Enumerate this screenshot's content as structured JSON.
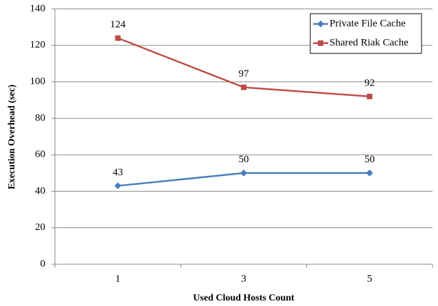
{
  "chart_data": {
    "type": "line",
    "x_label": "Used Cloud Hosts Count",
    "y_label": "Execution Overhead (sec)",
    "categories": [
      "1",
      "3",
      "5"
    ],
    "series": [
      {
        "name": "Private File Cache",
        "color": "#4a7ebb",
        "marker": "diamond",
        "values": [
          43,
          50,
          50
        ]
      },
      {
        "name": "Shared Riak Cache",
        "color": "#be4b48",
        "marker": "square",
        "values": [
          124,
          97,
          92
        ]
      }
    ],
    "ylim": [
      0,
      140
    ],
    "yticks": [
      0,
      20,
      40,
      60,
      80,
      100,
      120,
      140
    ],
    "grid": true,
    "legend": "top-right"
  }
}
